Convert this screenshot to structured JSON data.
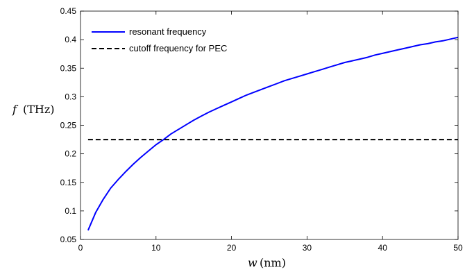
{
  "chart_data": {
    "type": "line",
    "title": "",
    "xlabel_var": "w",
    "xlabel_unit": "(nm)",
    "ylabel_var": "f",
    "ylabel_unit": "(THz)",
    "xlim": [
      0,
      50
    ],
    "ylim": [
      0.05,
      0.45
    ],
    "xticks": [
      0,
      10,
      20,
      30,
      40,
      50
    ],
    "yticks": [
      0.05,
      0.1,
      0.15,
      0.2,
      0.25,
      0.3,
      0.35,
      0.4,
      0.45
    ],
    "xtick_labels": [
      "0",
      "10",
      "20",
      "30",
      "40",
      "50"
    ],
    "ytick_labels": [
      "0.05",
      "0.1",
      "0.15",
      "0.2",
      "0.25",
      "0.3",
      "0.35",
      "0.4",
      "0.45"
    ],
    "grid": false,
    "legend_position": "top-left",
    "series": [
      {
        "name": "resonant frequency",
        "color": "#0000ff",
        "style": "solid",
        "x": [
          1,
          2,
          3,
          4,
          5,
          6,
          7,
          8,
          9,
          10,
          11,
          12,
          13,
          14,
          15,
          16,
          17,
          18,
          19,
          20,
          21,
          22,
          23,
          24,
          25,
          26,
          27,
          28,
          29,
          30,
          31,
          32,
          33,
          34,
          35,
          36,
          37,
          38,
          39,
          40,
          41,
          42,
          43,
          44,
          45,
          46,
          47,
          48,
          49,
          50
        ],
        "y": [
          0.066,
          0.097,
          0.12,
          0.14,
          0.155,
          0.169,
          0.182,
          0.194,
          0.205,
          0.216,
          0.225,
          0.235,
          0.243,
          0.251,
          0.259,
          0.266,
          0.273,
          0.279,
          0.285,
          0.291,
          0.297,
          0.303,
          0.308,
          0.313,
          0.318,
          0.323,
          0.328,
          0.332,
          0.336,
          0.34,
          0.344,
          0.348,
          0.352,
          0.356,
          0.36,
          0.363,
          0.366,
          0.369,
          0.373,
          0.376,
          0.379,
          0.382,
          0.385,
          0.388,
          0.391,
          0.393,
          0.396,
          0.398,
          0.401,
          0.404
        ]
      },
      {
        "name": "cutoff frequency for PEC",
        "color": "#000000",
        "style": "dashed",
        "x": [
          1,
          50
        ],
        "y": [
          0.225,
          0.225
        ]
      }
    ]
  }
}
